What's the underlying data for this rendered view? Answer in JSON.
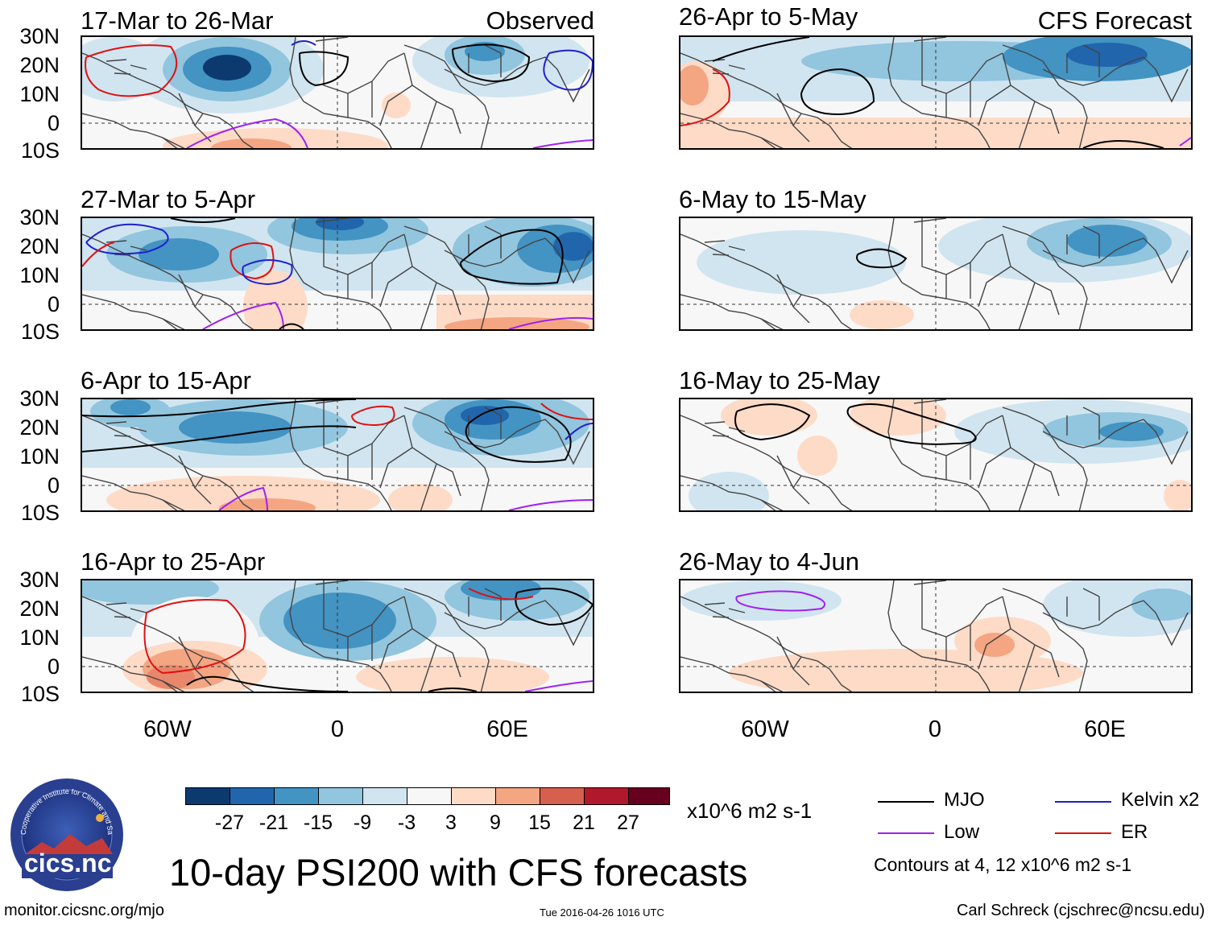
{
  "header": {
    "left_column_label": "Observed",
    "right_column_label": "CFS Forecast"
  },
  "panels": [
    {
      "id": "obs1",
      "period": "17-Mar to 26-Mar",
      "column": "observed"
    },
    {
      "id": "obs2",
      "period": "27-Mar to 5-Apr",
      "column": "observed"
    },
    {
      "id": "obs3",
      "period": "6-Apr to 15-Apr",
      "column": "observed"
    },
    {
      "id": "obs4",
      "period": "16-Apr to 25-Apr",
      "column": "observed"
    },
    {
      "id": "fc1",
      "period": "26-Apr to 5-May",
      "column": "forecast"
    },
    {
      "id": "fc2",
      "period": "6-May to 15-May",
      "column": "forecast"
    },
    {
      "id": "fc3",
      "period": "16-May to 25-May",
      "column": "forecast"
    },
    {
      "id": "fc4",
      "period": "26-May to 4-Jun",
      "column": "forecast"
    }
  ],
  "axes": {
    "lat_labels": [
      "30N",
      "20N",
      "10N",
      "0",
      "10S"
    ],
    "lon_labels": [
      "60W",
      "0",
      "60E"
    ]
  },
  "colorbar": {
    "labels": [
      "-27",
      "-21",
      "-15",
      "-9",
      "-3",
      "3",
      "9",
      "15",
      "21",
      "27"
    ],
    "colors": [
      "#0d3a6e",
      "#2166ac",
      "#4393c3",
      "#92c5de",
      "#d1e5f0",
      "#f7f7f7",
      "#fddbc7",
      "#f4a582",
      "#d6604d",
      "#b2182b",
      "#67001f"
    ],
    "units": "x10^6 m2 s-1"
  },
  "legend": {
    "items": [
      {
        "name": "MJO",
        "color": "#000000"
      },
      {
        "name": "Kelvin x2",
        "color": "#1f1fd0"
      },
      {
        "name": "Low",
        "color": "#a020f0"
      },
      {
        "name": "ER",
        "color": "#e01010"
      }
    ],
    "contours_note": "Contours at 4, 12 x10^6 m2 s-1"
  },
  "main_title": "10-day PSI200 with CFS forecasts",
  "footer": {
    "url": "monitor.cicsnc.org/mjo",
    "timestamp": "Tue 2016-04-26 1016 UTC",
    "author": "Carl Schreck (cjschrec@ncsu.edu)",
    "logo_text": "cics.nc",
    "logo_ring_text": "Cooperative Institute for Climate and Satellites"
  }
}
